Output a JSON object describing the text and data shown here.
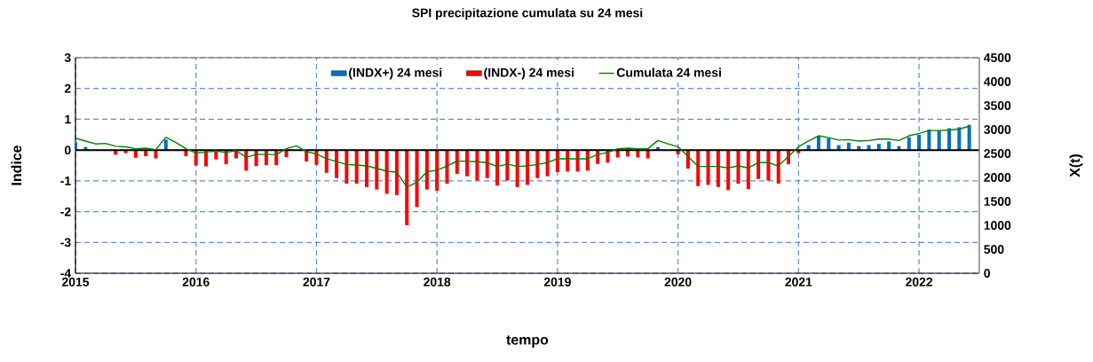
{
  "chart_data": {
    "type": "bar",
    "title": "SPI precipitazione cumulata su 24 mesi",
    "xlabel": "tempo",
    "ylabel": "Indice",
    "y2label": "X(t)",
    "x": [
      "2015-01",
      "2015-02",
      "2015-03",
      "2015-04",
      "2015-05",
      "2015-06",
      "2015-07",
      "2015-08",
      "2015-09",
      "2015-10",
      "2015-11",
      "2015-12",
      "2016-01",
      "2016-02",
      "2016-03",
      "2016-04",
      "2016-05",
      "2016-06",
      "2016-07",
      "2016-08",
      "2016-09",
      "2016-10",
      "2016-11",
      "2016-12",
      "2017-01",
      "2017-02",
      "2017-03",
      "2017-04",
      "2017-05",
      "2017-06",
      "2017-07",
      "2017-08",
      "2017-09",
      "2017-10",
      "2017-11",
      "2017-12",
      "2018-01",
      "2018-02",
      "2018-03",
      "2018-04",
      "2018-05",
      "2018-06",
      "2018-07",
      "2018-08",
      "2018-09",
      "2018-10",
      "2018-11",
      "2018-12",
      "2019-01",
      "2019-02",
      "2019-03",
      "2019-04",
      "2019-05",
      "2019-06",
      "2019-07",
      "2019-08",
      "2019-09",
      "2019-10",
      "2019-11",
      "2019-12",
      "2020-01",
      "2020-02",
      "2020-03",
      "2020-04",
      "2020-05",
      "2020-06",
      "2020-07",
      "2020-08",
      "2020-09",
      "2020-10",
      "2020-11",
      "2020-12",
      "2021-01",
      "2021-02",
      "2021-03",
      "2021-04",
      "2021-05",
      "2021-06",
      "2021-07",
      "2021-08",
      "2021-09",
      "2021-10",
      "2021-11",
      "2021-12",
      "2022-01",
      "2022-02",
      "2022-03",
      "2022-04",
      "2022-05",
      "2022-06"
    ],
    "series": [
      {
        "name": "(INDX+) 24 mesi",
        "color": "#0070c0",
        "values": [
          0.25,
          0.1,
          null,
          null,
          null,
          null,
          null,
          null,
          null,
          0.34,
          null,
          null,
          null,
          null,
          null,
          null,
          null,
          null,
          null,
          null,
          null,
          null,
          null,
          null,
          null,
          null,
          null,
          null,
          null,
          null,
          null,
          null,
          null,
          null,
          null,
          null,
          null,
          null,
          null,
          null,
          null,
          null,
          null,
          null,
          null,
          null,
          null,
          null,
          null,
          null,
          null,
          null,
          null,
          null,
          null,
          null,
          null,
          null,
          0.1,
          null,
          null,
          null,
          null,
          null,
          null,
          null,
          null,
          null,
          null,
          null,
          null,
          null,
          null,
          0.16,
          0.45,
          0.38,
          0.16,
          0.24,
          0.13,
          0.16,
          0.2,
          0.28,
          0.13,
          0.42,
          0.5,
          0.67,
          0.64,
          0.71,
          0.74,
          0.82
        ]
      },
      {
        "name": "(INDX-) 24 mesi",
        "color": "#ff0000",
        "values": [
          null,
          null,
          null,
          null,
          -0.15,
          -0.1,
          -0.25,
          -0.2,
          -0.27,
          null,
          null,
          -0.2,
          -0.5,
          -0.53,
          -0.3,
          -0.46,
          -0.27,
          -0.67,
          -0.52,
          -0.49,
          -0.49,
          -0.23,
          null,
          -0.37,
          -0.48,
          -0.74,
          -0.91,
          -1.09,
          -1.09,
          -1.2,
          -1.28,
          -1.42,
          -1.46,
          -2.44,
          -1.85,
          -1.28,
          -1.32,
          -1.09,
          -0.77,
          -0.85,
          -0.99,
          -0.91,
          -1.15,
          -0.99,
          -1.2,
          -1.13,
          -0.91,
          -0.85,
          -0.72,
          -0.7,
          -0.7,
          -0.67,
          -0.45,
          -0.41,
          -0.24,
          -0.21,
          -0.24,
          -0.27,
          null,
          null,
          -0.14,
          -0.6,
          -1.17,
          -1.13,
          -1.2,
          -1.3,
          -1.09,
          -1.27,
          -0.94,
          -0.99,
          -1.09,
          -0.46,
          -0.1,
          null,
          null,
          null,
          null,
          null,
          null,
          null,
          null,
          null,
          null,
          null,
          null,
          null,
          null,
          null,
          null,
          null
        ]
      },
      {
        "name": "Cumulata 24 mesi",
        "type": "line",
        "axis": "y2",
        "color": "#008000",
        "values": [
          2820,
          2760,
          2700,
          2710,
          2650,
          2640,
          2600,
          2610,
          2580,
          2840,
          2730,
          2600,
          2510,
          2530,
          2550,
          2520,
          2560,
          2420,
          2480,
          2480,
          2480,
          2600,
          2660,
          2540,
          2490,
          2390,
          2330,
          2270,
          2260,
          2240,
          2190,
          2130,
          2110,
          1800,
          1900,
          2120,
          2150,
          2240,
          2340,
          2340,
          2330,
          2310,
          2230,
          2280,
          2230,
          2240,
          2270,
          2310,
          2390,
          2390,
          2390,
          2390,
          2480,
          2520,
          2600,
          2610,
          2600,
          2600,
          2770,
          2700,
          2640,
          2440,
          2230,
          2230,
          2230,
          2200,
          2240,
          2200,
          2310,
          2310,
          2240,
          2440,
          2640,
          2760,
          2870,
          2830,
          2780,
          2790,
          2760,
          2770,
          2800,
          2800,
          2770,
          2870,
          2920,
          2980,
          2980,
          2990,
          3010,
          3070
        ]
      }
    ],
    "xlim": [
      "2015-01",
      "2022-07"
    ],
    "xticks": [
      "2015",
      "2016",
      "2017",
      "2018",
      "2019",
      "2020",
      "2021",
      "2022"
    ],
    "ylim": [
      -4,
      3
    ],
    "yticks": [
      -4,
      -3,
      -2,
      -1,
      0,
      1,
      2,
      3
    ],
    "y2lim": [
      0,
      4500
    ],
    "y2ticks": [
      0,
      500,
      1000,
      1500,
      2000,
      2500,
      3000,
      3500,
      4000,
      4500
    ],
    "ref_lines": [
      {
        "axis": "y",
        "value": 0,
        "color": "#000000"
      }
    ],
    "grid": true,
    "legend": "top",
    "marker": "none"
  }
}
